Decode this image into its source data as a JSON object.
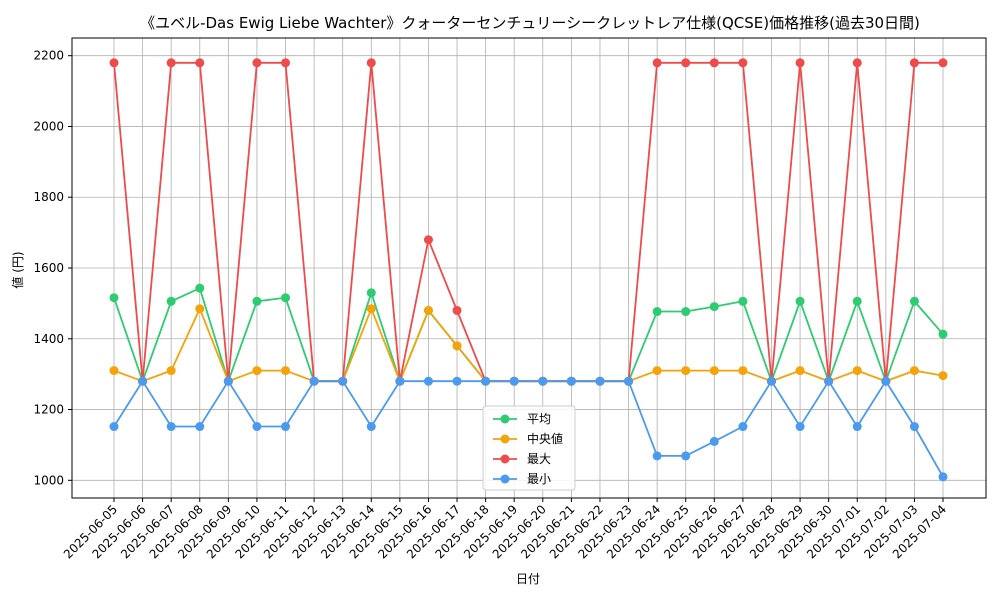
{
  "chart_data": {
    "type": "line",
    "title": "《ユベル-Das Ewig Liebe Wachter》クォーターセンチュリーシークレットレア仕様(QCSE)価格推移(過去30日間)",
    "xlabel": "日付",
    "ylabel": "値 (円)",
    "ylim": [
      950,
      2250
    ],
    "yticks": [
      1000,
      1200,
      1400,
      1600,
      1800,
      2000,
      2200
    ],
    "grid": true,
    "legend_position": "lower-center",
    "categories": [
      "2025-06-05",
      "2025-06-06",
      "2025-06-07",
      "2025-06-08",
      "2025-06-09",
      "2025-06-10",
      "2025-06-11",
      "2025-06-12",
      "2025-06-13",
      "2025-06-14",
      "2025-06-15",
      "2025-06-16",
      "2025-06-17",
      "2025-06-18",
      "2025-06-19",
      "2025-06-20",
      "2025-06-21",
      "2025-06-22",
      "2025-06-23",
      "2025-06-24",
      "2025-06-25",
      "2025-06-26",
      "2025-06-27",
      "2025-06-28",
      "2025-06-29",
      "2025-06-30",
      "2025-07-01",
      "2025-07-02",
      "2025-07-03",
      "2025-07-04"
    ],
    "series": [
      {
        "name": "平均",
        "color": "#2ecc71",
        "values": [
          1516,
          1280,
          1506,
          1543,
          1280,
          1506,
          1516,
          1280,
          1280,
          1530,
          1280,
          1480,
          1380,
          1280,
          1280,
          1280,
          1280,
          1280,
          1280,
          1477,
          1477,
          1491,
          1506,
          1280,
          1506,
          1280,
          1506,
          1280,
          1506,
          1413
        ]
      },
      {
        "name": "中央値",
        "color": "#f5a30a",
        "values": [
          1310,
          1280,
          1310,
          1485,
          1280,
          1310,
          1310,
          1280,
          1280,
          1485,
          1280,
          1480,
          1380,
          1280,
          1280,
          1280,
          1280,
          1280,
          1280,
          1310,
          1310,
          1310,
          1310,
          1280,
          1310,
          1280,
          1310,
          1280,
          1310,
          1296
        ]
      },
      {
        "name": "最大",
        "color": "#ef4b4b",
        "values": [
          2180,
          1280,
          2180,
          2180,
          1280,
          2180,
          2180,
          1280,
          1280,
          2180,
          1280,
          1680,
          1480,
          1280,
          1280,
          1280,
          1280,
          1280,
          1280,
          2180,
          2180,
          2180,
          2180,
          1280,
          2180,
          1280,
          2180,
          1280,
          2180,
          2180
        ]
      },
      {
        "name": "最小",
        "color": "#4a9af0",
        "values": [
          1152,
          1280,
          1152,
          1152,
          1280,
          1152,
          1152,
          1280,
          1280,
          1152,
          1280,
          1280,
          1280,
          1280,
          1280,
          1280,
          1280,
          1280,
          1280,
          1069,
          1069,
          1110,
          1152,
          1280,
          1152,
          1280,
          1152,
          1280,
          1152,
          1010
        ]
      }
    ]
  }
}
